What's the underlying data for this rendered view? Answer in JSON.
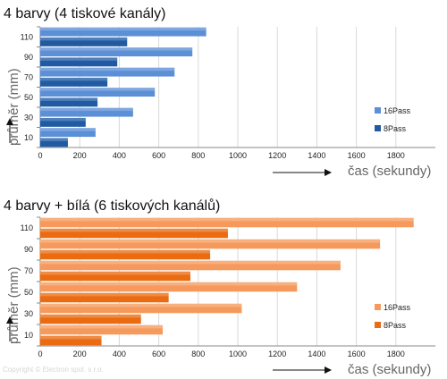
{
  "footer": {
    "copyright": "Copyright © Electron spol. s r.o."
  },
  "chart_data": [
    {
      "type": "bar",
      "orientation": "horizontal",
      "title": "4 barvy (4 tiskové kanály)",
      "ylabel": "průměr (mm)",
      "xlabel": "čas (sekundy)",
      "categories": [
        "10",
        "30",
        "50",
        "70",
        "90",
        "110"
      ],
      "xlim": [
        0,
        2000
      ],
      "xticks": [
        "0",
        "200",
        "400",
        "600",
        "800",
        "1000",
        "1200",
        "1400",
        "1600",
        "1800"
      ],
      "grid": true,
      "legend_position": "right",
      "series": [
        {
          "name": "16Pass",
          "color": "#5b8fd6",
          "values": [
            280,
            470,
            580,
            680,
            770,
            840
          ]
        },
        {
          "name": "8Pass",
          "color": "#1f5aa3",
          "values": [
            140,
            230,
            290,
            340,
            390,
            440
          ]
        }
      ]
    },
    {
      "type": "bar",
      "orientation": "horizontal",
      "title": "4 barvy + bílá (6 tiskových kanálů)",
      "ylabel": "průměr (mm)",
      "xlabel": "čas (sekundy)",
      "categories": [
        "10",
        "30",
        "50",
        "70",
        "90",
        "110"
      ],
      "xlim": [
        0,
        2000
      ],
      "xticks": [
        "0",
        "200",
        "400",
        "600",
        "800",
        "1000",
        "1200",
        "1400",
        "1600",
        "1800"
      ],
      "grid": true,
      "legend_position": "right",
      "series": [
        {
          "name": "16Pass",
          "color": "#f59a5c",
          "values": [
            620,
            1020,
            1300,
            1520,
            1720,
            1890
          ]
        },
        {
          "name": "8Pass",
          "color": "#ea6b10",
          "values": [
            310,
            510,
            650,
            760,
            860,
            950
          ]
        }
      ]
    }
  ]
}
